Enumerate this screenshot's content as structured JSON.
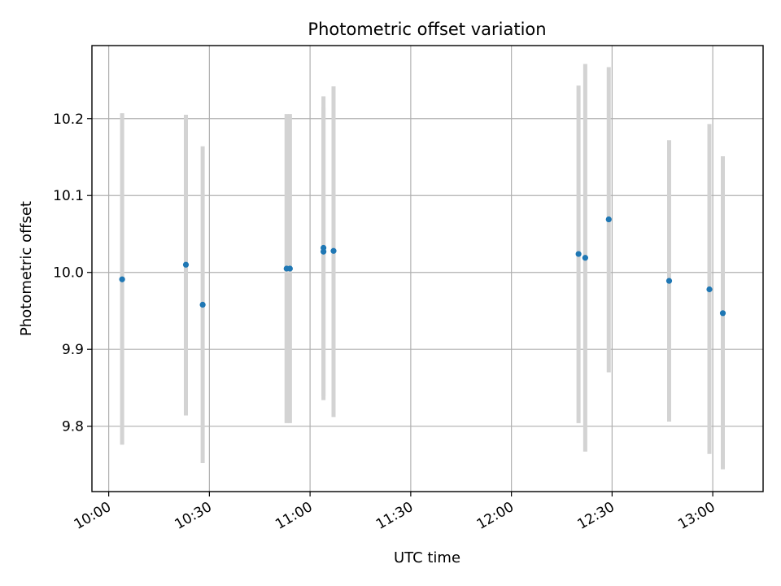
{
  "chart_data": {
    "type": "scatter",
    "title": "Photometric offset variation",
    "xlabel": "UTC time",
    "ylabel": "Photometric offset",
    "x_ticks": [
      "10:00",
      "10:30",
      "11:00",
      "11:30",
      "12:00",
      "12:30",
      "13:00"
    ],
    "y_ticks": [
      "9.8",
      "9.9",
      "10.0",
      "10.1",
      "10.2"
    ],
    "xlim": [
      "09:55",
      "13:15"
    ],
    "ylim": [
      9.715,
      10.295
    ],
    "grid": true,
    "colors": {
      "point": "#1f77b4",
      "errorbar": "#d3d3d3"
    },
    "points": [
      {
        "time": "10:04",
        "y": 9.991,
        "err_low": 9.776,
        "err_high": 10.207
      },
      {
        "time": "10:23",
        "y": 10.01,
        "err_low": 9.814,
        "err_high": 10.205
      },
      {
        "time": "10:28",
        "y": 9.958,
        "err_low": 9.752,
        "err_high": 10.164
      },
      {
        "time": "10:53",
        "y": 10.005,
        "err_low": 9.804,
        "err_high": 10.206
      },
      {
        "time": "10:54",
        "y": 10.005,
        "err_low": 9.804,
        "err_high": 10.206
      },
      {
        "time": "11:04",
        "y": 10.032,
        "err_low": 9.834,
        "err_high": 10.229
      },
      {
        "time": "11:04",
        "y": 10.027,
        "err_low": 9.839,
        "err_high": 10.215
      },
      {
        "time": "11:07",
        "y": 10.028,
        "err_low": 9.812,
        "err_high": 10.242
      },
      {
        "time": "12:20",
        "y": 10.024,
        "err_low": 9.804,
        "err_high": 10.243
      },
      {
        "time": "12:22",
        "y": 10.019,
        "err_low": 9.767,
        "err_high": 10.271
      },
      {
        "time": "12:29",
        "y": 10.069,
        "err_low": 9.87,
        "err_high": 10.267
      },
      {
        "time": "12:47",
        "y": 9.989,
        "err_low": 9.806,
        "err_high": 10.172
      },
      {
        "time": "12:59",
        "y": 9.978,
        "err_low": 9.764,
        "err_high": 10.193
      },
      {
        "time": "13:03",
        "y": 9.947,
        "err_low": 9.744,
        "err_high": 10.151
      }
    ]
  }
}
